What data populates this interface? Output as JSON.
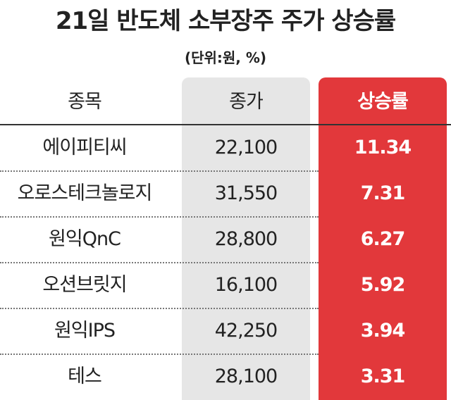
{
  "header": {
    "title": "21일 반도체 소부장주 주가 상승률",
    "unit": "(단위:원, %)"
  },
  "table": {
    "columns": [
      "종목",
      "종가",
      "상승률"
    ],
    "rows": [
      [
        "에이피티씨",
        "22,100",
        "11.34"
      ],
      [
        "오로스테크놀로지",
        "31,550",
        "7.31"
      ],
      [
        "원익QnC",
        "28,800",
        "6.27"
      ],
      [
        "오션브릿지",
        "16,100",
        "5.92"
      ],
      [
        "원익IPS",
        "42,250",
        "3.94"
      ],
      [
        "테스",
        "28,100",
        "3.31"
      ]
    ]
  }
}
